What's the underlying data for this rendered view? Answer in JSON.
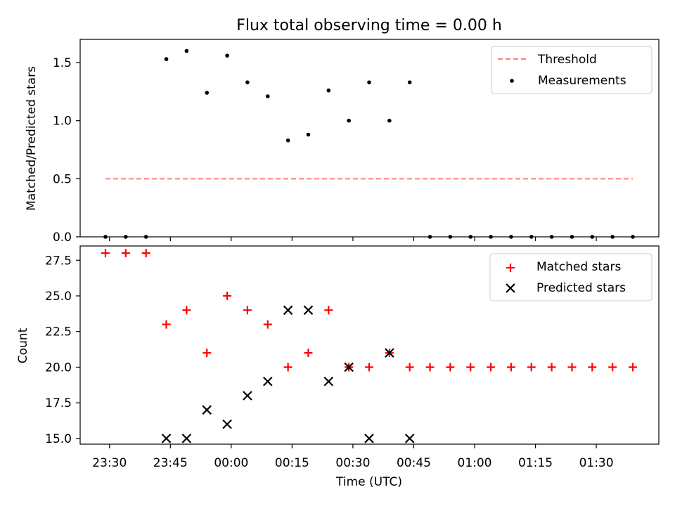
{
  "figure": {
    "title": "Flux total observing time = 0.00 h"
  },
  "colors": {
    "threshold": "#ff7f7f",
    "measurements": "#000000",
    "matched": "#ff0000",
    "predicted": "#000000"
  },
  "chart_data": [
    {
      "type": "scatter",
      "title": "Flux total observing time = 0.00 h",
      "ylabel": "Matched/Predicted stars",
      "xlabel": "",
      "ylim": [
        0,
        1.7
      ],
      "yticks": [
        "0.0",
        "0.5",
        "1.0",
        "1.5"
      ],
      "ytick_values": [
        0,
        0.5,
        1.0,
        1.5
      ],
      "legend_position": "top-right",
      "x": [
        "23:29",
        "23:34",
        "23:39",
        "23:44",
        "23:49",
        "23:54",
        "23:59",
        "00:04",
        "00:09",
        "00:14",
        "00:19",
        "00:24",
        "00:29",
        "00:34",
        "00:39",
        "00:44",
        "00:49",
        "00:54",
        "00:59",
        "01:04",
        "01:09",
        "01:14",
        "01:19",
        "01:24",
        "01:29",
        "01:34",
        "01:39"
      ],
      "series": [
        {
          "name": "Threshold",
          "style": "dashed-line",
          "x_range": [
            "23:29",
            "01:39"
          ],
          "values": [
            0.5,
            0.5
          ]
        },
        {
          "name": "Measurements",
          "style": "dot",
          "values": [
            0,
            0,
            0,
            1.53,
            1.6,
            1.24,
            1.56,
            1.33,
            1.21,
            0.83,
            0.88,
            1.26,
            1.0,
            1.33,
            1.0,
            1.33,
            0,
            0,
            0,
            0,
            0,
            0,
            0,
            0,
            0,
            0,
            0
          ]
        }
      ]
    },
    {
      "type": "scatter",
      "title": "",
      "ylabel": "Count",
      "xlabel": "Time (UTC)",
      "ylim": [
        14.6,
        28.5
      ],
      "yticks": [
        "15.0",
        "17.5",
        "20.0",
        "22.5",
        "25.0",
        "27.5"
      ],
      "ytick_values": [
        15,
        17.5,
        20,
        22.5,
        25,
        27.5
      ],
      "xticks": [
        "23:30",
        "23:45",
        "00:00",
        "00:15",
        "00:30",
        "00:45",
        "01:00",
        "01:15",
        "01:30"
      ],
      "legend_position": "top-right",
      "x": [
        "23:29",
        "23:34",
        "23:39",
        "23:44",
        "23:49",
        "23:54",
        "23:59",
        "00:04",
        "00:09",
        "00:14",
        "00:19",
        "00:24",
        "00:29",
        "00:34",
        "00:39",
        "00:44",
        "00:49",
        "00:54",
        "00:59",
        "01:04",
        "01:09",
        "01:14",
        "01:19",
        "01:24",
        "01:29",
        "01:34",
        "01:39"
      ],
      "series": [
        {
          "name": "Matched stars",
          "marker": "plus",
          "values": [
            28,
            28,
            28,
            23,
            24,
            21,
            25,
            24,
            23,
            20,
            21,
            24,
            20,
            20,
            21,
            20,
            20,
            20,
            20,
            20,
            20,
            20,
            20,
            20,
            20,
            20,
            20
          ]
        },
        {
          "name": "Predicted stars",
          "marker": "x",
          "values": [
            null,
            null,
            null,
            15,
            15,
            17,
            16,
            18,
            19,
            24,
            24,
            19,
            20,
            15,
            21,
            15,
            null,
            null,
            null,
            null,
            null,
            null,
            null,
            null,
            null,
            null,
            null
          ]
        }
      ]
    }
  ]
}
